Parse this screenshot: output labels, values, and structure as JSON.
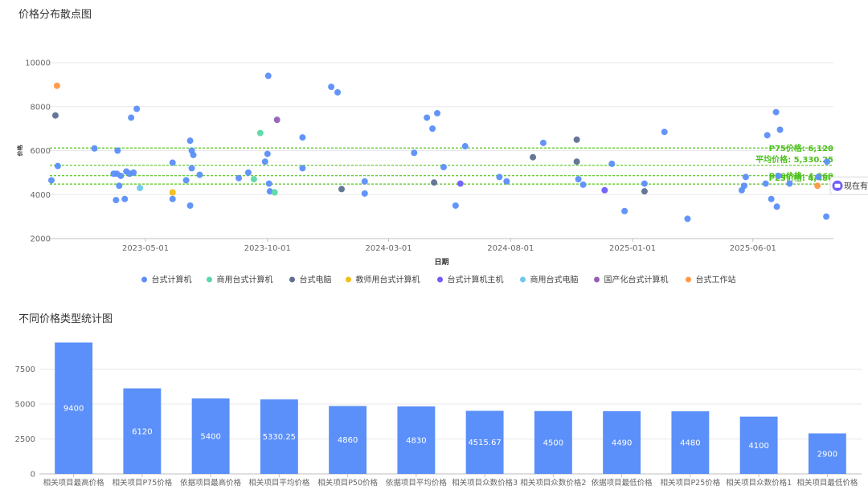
{
  "scatter_title": "价格分布散点图",
  "bar_title": "不同价格类型统计图",
  "tooltip_text": "现在有价",
  "chart_data": [
    {
      "type": "scatter",
      "title": "价格分布散点图",
      "xlabel": "日期",
      "ylabel": "价格",
      "x_ticks": [
        "2023-05-01",
        "2023-10-01",
        "2024-03-01",
        "2024-08-01",
        "2025-01-01",
        "2025-06-01"
      ],
      "y_ticks": [
        2000,
        4000,
        6000,
        8000,
        10000
      ],
      "xlim": [
        "2023-01-01",
        "2025-09-10"
      ],
      "ylim": [
        2000,
        10000
      ],
      "grid": true,
      "legend_position": "bottom",
      "reference_lines": [
        {
          "label": "P75价格: 6,120",
          "value": 6120,
          "color": "#52c41a"
        },
        {
          "label": "平均价格: 5,330.25",
          "value": 5330.25,
          "color": "#52c41a"
        },
        {
          "label": "P50价格: 4,860",
          "value": 4860,
          "color": "#52c41a"
        },
        {
          "label": "P25价格: 4,480",
          "value": 4480,
          "color": "#52c41a"
        }
      ],
      "series": [
        {
          "name": "台式计算机",
          "color": "#5b8ff9",
          "points": [
            {
              "x": "2023-01-03",
              "y": 4650
            },
            {
              "x": "2023-01-11",
              "y": 5300
            },
            {
              "x": "2023-02-26",
              "y": 6100
            },
            {
              "x": "2023-03-22",
              "y": 4950
            },
            {
              "x": "2023-03-25",
              "y": 3750
            },
            {
              "x": "2023-03-26",
              "y": 4950
            },
            {
              "x": "2023-03-27",
              "y": 6000
            },
            {
              "x": "2023-03-29",
              "y": 4400
            },
            {
              "x": "2023-03-31",
              "y": 4850
            },
            {
              "x": "2023-04-05",
              "y": 3800
            },
            {
              "x": "2023-04-07",
              "y": 5050
            },
            {
              "x": "2023-04-11",
              "y": 4950
            },
            {
              "x": "2023-04-13",
              "y": 7500
            },
            {
              "x": "2023-04-16",
              "y": 5000
            },
            {
              "x": "2023-04-20",
              "y": 7900
            },
            {
              "x": "2023-06-04",
              "y": 5450
            },
            {
              "x": "2023-06-04",
              "y": 3800
            },
            {
              "x": "2023-06-21",
              "y": 4650
            },
            {
              "x": "2023-06-26",
              "y": 3500
            },
            {
              "x": "2023-06-26",
              "y": 6450
            },
            {
              "x": "2023-06-28",
              "y": 6000
            },
            {
              "x": "2023-06-28",
              "y": 5200
            },
            {
              "x": "2023-06-30",
              "y": 5800
            },
            {
              "x": "2023-07-08",
              "y": 4900
            },
            {
              "x": "2023-08-26",
              "y": 4750
            },
            {
              "x": "2023-09-07",
              "y": 5000
            },
            {
              "x": "2023-09-28",
              "y": 5500
            },
            {
              "x": "2023-10-01",
              "y": 5850
            },
            {
              "x": "2023-10-02",
              "y": 9400
            },
            {
              "x": "2023-10-03",
              "y": 4500
            },
            {
              "x": "2023-10-04",
              "y": 4150
            },
            {
              "x": "2023-11-14",
              "y": 6600
            },
            {
              "x": "2023-11-14",
              "y": 5200
            },
            {
              "x": "2023-12-20",
              "y": 8900
            },
            {
              "x": "2023-12-28",
              "y": 8650
            },
            {
              "x": "2024-01-31",
              "y": 4050
            },
            {
              "x": "2024-01-31",
              "y": 4600
            },
            {
              "x": "2024-04-02",
              "y": 5900
            },
            {
              "x": "2024-04-18",
              "y": 7500
            },
            {
              "x": "2024-04-25",
              "y": 7000
            },
            {
              "x": "2024-05-01",
              "y": 7700
            },
            {
              "x": "2024-05-09",
              "y": 5250
            },
            {
              "x": "2024-05-24",
              "y": 3500
            },
            {
              "x": "2024-06-05",
              "y": 6200
            },
            {
              "x": "2024-07-18",
              "y": 4800
            },
            {
              "x": "2024-07-27",
              "y": 4600
            },
            {
              "x": "2024-09-11",
              "y": 6350
            },
            {
              "x": "2024-10-25",
              "y": 4700
            },
            {
              "x": "2024-10-31",
              "y": 4450
            },
            {
              "x": "2024-12-06",
              "y": 5400
            },
            {
              "x": "2024-12-22",
              "y": 3250
            },
            {
              "x": "2025-01-16",
              "y": 4500
            },
            {
              "x": "2025-02-10",
              "y": 6850
            },
            {
              "x": "2025-03-11",
              "y": 2900
            },
            {
              "x": "2025-05-18",
              "y": 4200
            },
            {
              "x": "2025-05-21",
              "y": 4400
            },
            {
              "x": "2025-05-23",
              "y": 4800
            },
            {
              "x": "2025-06-17",
              "y": 4500
            },
            {
              "x": "2025-06-19",
              "y": 6700
            },
            {
              "x": "2025-06-24",
              "y": 3800
            },
            {
              "x": "2025-06-30",
              "y": 7750
            },
            {
              "x": "2025-07-01",
              "y": 3450
            },
            {
              "x": "2025-07-03",
              "y": 4850
            },
            {
              "x": "2025-07-05",
              "y": 6950
            },
            {
              "x": "2025-07-17",
              "y": 4500
            },
            {
              "x": "2025-08-22",
              "y": 4800
            },
            {
              "x": "2025-09-01",
              "y": 3000
            },
            {
              "x": "2025-09-02",
              "y": 5500
            }
          ]
        },
        {
          "name": "商用台式计算机",
          "color": "#5ad8a6",
          "points": [
            {
              "x": "2023-09-14",
              "y": 4700
            },
            {
              "x": "2023-09-22",
              "y": 6800
            },
            {
              "x": "2023-10-10",
              "y": 4100
            }
          ]
        },
        {
          "name": "台式电脑",
          "color": "#5d7092",
          "points": [
            {
              "x": "2023-01-08",
              "y": 7600
            },
            {
              "x": "2024-01-02",
              "y": 4250
            },
            {
              "x": "2024-04-27",
              "y": 4550
            },
            {
              "x": "2024-08-29",
              "y": 5700
            },
            {
              "x": "2024-10-23",
              "y": 6500
            },
            {
              "x": "2024-10-23",
              "y": 5500
            },
            {
              "x": "2025-01-16",
              "y": 4150
            }
          ]
        },
        {
          "name": "教师用台式计算机",
          "color": "#f6bd16",
          "points": [
            {
              "x": "2023-06-04",
              "y": 4100
            }
          ]
        },
        {
          "name": "台式计算机主机",
          "color": "#6f5ef9",
          "points": [
            {
              "x": "2024-05-30",
              "y": 4500
            },
            {
              "x": "2024-11-27",
              "y": 4200
            }
          ]
        },
        {
          "name": "商用台式电脑",
          "color": "#6dc8ec",
          "points": [
            {
              "x": "2023-04-24",
              "y": 4300
            }
          ]
        },
        {
          "name": "国产化台式计算机",
          "color": "#945fb9",
          "points": [
            {
              "x": "2023-10-13",
              "y": 7400
            }
          ]
        },
        {
          "name": "台式工作站",
          "color": "#ff9845",
          "points": [
            {
              "x": "2023-01-10",
              "y": 8950
            },
            {
              "x": "2025-08-21",
              "y": 4400
            }
          ]
        }
      ]
    },
    {
      "type": "bar",
      "title": "不同价格类型统计图",
      "categories": [
        "相关项目最高价格",
        "相关项目P75价格",
        "依据项目最高价格",
        "相关项目平均价格",
        "相关项目P50价格",
        "依据项目平均价格",
        "相关项目众数价格3",
        "相关项目众数价格2",
        "依据项目最低价格",
        "相关项目P25价格",
        "相关项目众数价格1",
        "相关项目最低价格"
      ],
      "values": [
        9400,
        6120,
        5400,
        5330.25,
        4860,
        4830,
        4515.67,
        4500,
        4490,
        4480,
        4100,
        2900
      ],
      "y_ticks": [
        0,
        2500,
        5000,
        7500
      ],
      "ylim": [
        0,
        10000
      ],
      "bar_color": "#5b8ff9",
      "grid": true
    }
  ]
}
